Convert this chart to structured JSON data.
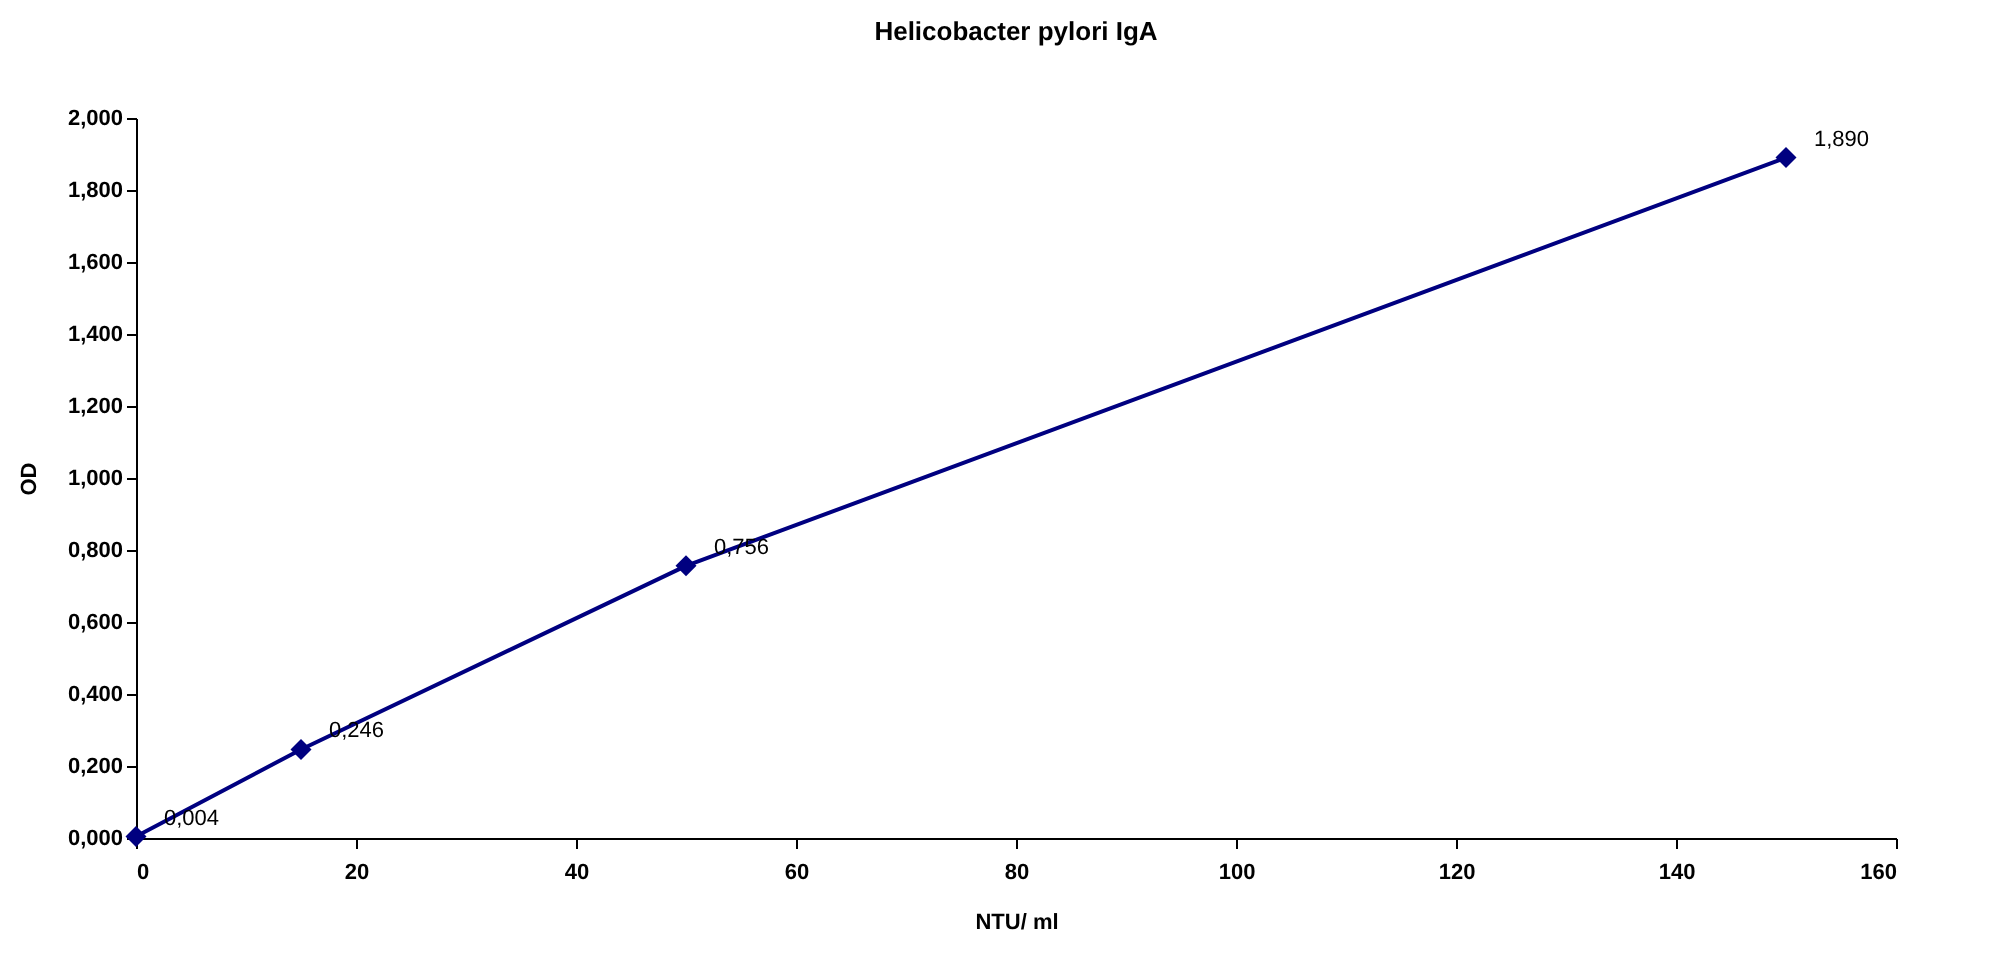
{
  "chart_data": {
    "type": "line",
    "title": "Helicobacter pylori IgA",
    "xlabel": "NTU/ ml",
    "ylabel": "OD",
    "x": [
      0,
      15,
      50,
      150
    ],
    "series": [
      {
        "color": "#000080",
        "values": [
          0.004,
          0.246,
          0.756,
          1.89
        ],
        "value_labels": [
          "0,004",
          "0,246",
          "0,756",
          "1,890"
        ]
      }
    ],
    "xlim": [
      0,
      160
    ],
    "xticks": [
      0,
      20,
      40,
      60,
      80,
      100,
      120,
      140,
      160
    ],
    "ylim": [
      0,
      2
    ],
    "yticks": [
      {
        "value": 0,
        "label": "0,000"
      },
      {
        "value": 0.2,
        "label": "0,200"
      },
      {
        "value": 0.4,
        "label": "0,400"
      },
      {
        "value": 0.6,
        "label": "0,600"
      },
      {
        "value": 0.8,
        "label": "0,800"
      },
      {
        "value": 1.0,
        "label": "1,000"
      },
      {
        "value": 1.2,
        "label": "1,200"
      },
      {
        "value": 1.4,
        "label": "1,400"
      },
      {
        "value": 1.6,
        "label": "1,600"
      },
      {
        "value": 1.8,
        "label": "1,800"
      },
      {
        "value": 2.0,
        "label": "2,000"
      }
    ],
    "marker": "diamond",
    "line_style": "solid",
    "grid": false
  }
}
